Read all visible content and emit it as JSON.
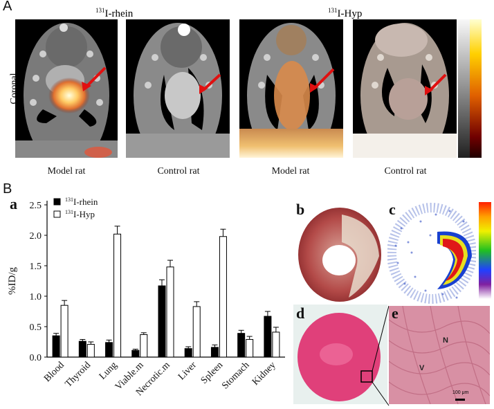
{
  "figure": {
    "panel_a_letter": "A",
    "panel_b_letter": "B",
    "sub_a": "a",
    "sub_b": "b",
    "sub_c": "c",
    "sub_d": "d",
    "sub_e": "e",
    "group_rhein_label_sup": "131",
    "group_rhein_label": "I-rhein",
    "group_hyp_label_sup": "131",
    "group_hyp_label": "I-Hyp",
    "coronal_label": "Coronal",
    "captions": [
      "Model rat",
      "Control rat",
      "Model rat",
      "Control rat"
    ],
    "histology_labels": {
      "n": "N",
      "v": "V",
      "scale": "100 μm"
    }
  },
  "chart_data": {
    "type": "bar",
    "ylabel": "%ID/g",
    "ylim": [
      0,
      2.5
    ],
    "yticks": [
      "0.0",
      "0.5",
      "1.0",
      "1.5",
      "2.0",
      "2.5"
    ],
    "categories": [
      "Blood",
      "Thyroid",
      "Lung",
      "Viable.m",
      "Necrotic.m",
      "Liver",
      "Spleen",
      "Stomach",
      "Kidney"
    ],
    "series": [
      {
        "name_sup": "131",
        "name": "I-rhein",
        "color": "#000000",
        "values": [
          0.35,
          0.26,
          0.24,
          0.11,
          1.17,
          0.14,
          0.16,
          0.39,
          0.67
        ],
        "errors": [
          0.04,
          0.03,
          0.04,
          0.02,
          0.1,
          0.03,
          0.04,
          0.05,
          0.08
        ]
      },
      {
        "name_sup": "131",
        "name": "I-Hyp",
        "color": "#ffffff",
        "values": [
          0.85,
          0.21,
          2.02,
          0.37,
          1.48,
          0.83,
          1.98,
          0.29,
          0.41
        ],
        "errors": [
          0.08,
          0.04,
          0.13,
          0.03,
          0.11,
          0.08,
          0.12,
          0.05,
          0.08
        ]
      }
    ],
    "legend_position": "top-left",
    "grid": false
  }
}
